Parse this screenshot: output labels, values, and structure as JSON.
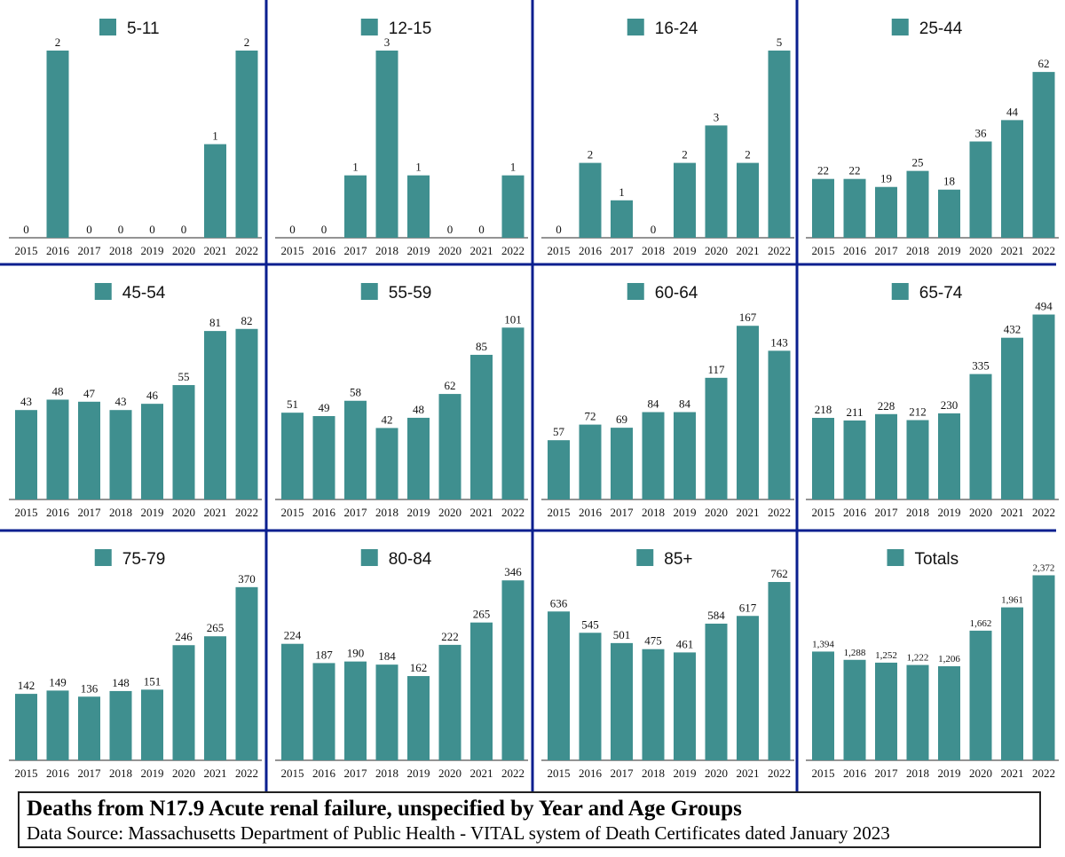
{
  "colors": {
    "bar": "#3f8f8f",
    "divider": "#0a1f8f",
    "axis": "#555555"
  },
  "caption": {
    "title": "Deaths from N17.9 Acute renal failure, unspecified by Year and Age Groups",
    "source": "Data Source:  Massachusetts Department of Public Health - VITAL system of Death Certificates dated January 2023"
  },
  "chart_data": [
    {
      "type": "bar",
      "title": "5-11",
      "categories": [
        "2015",
        "2016",
        "2017",
        "2018",
        "2019",
        "2020",
        "2021",
        "2022"
      ],
      "values": [
        0,
        2,
        0,
        0,
        0,
        0,
        1,
        2
      ],
      "labels": [
        "0",
        "2",
        "0",
        "0",
        "0",
        "0",
        "1",
        "2"
      ],
      "ylim": [
        0,
        2
      ]
    },
    {
      "type": "bar",
      "title": "12-15",
      "categories": [
        "2015",
        "2016",
        "2017",
        "2018",
        "2019",
        "2020",
        "2021",
        "2022"
      ],
      "values": [
        0,
        0,
        1,
        3,
        1,
        0,
        0,
        1
      ],
      "labels": [
        "0",
        "0",
        "1",
        "3",
        "1",
        "0",
        "0",
        "1"
      ],
      "ylim": [
        0,
        3
      ]
    },
    {
      "type": "bar",
      "title": "16-24",
      "categories": [
        "2015",
        "2016",
        "2017",
        "2018",
        "2019",
        "2020",
        "2021",
        "2022"
      ],
      "values": [
        0,
        2,
        1,
        0,
        2,
        3,
        2,
        5
      ],
      "labels": [
        "0",
        "2",
        "1",
        "0",
        "2",
        "3",
        "2",
        "5"
      ],
      "ylim": [
        0,
        5
      ]
    },
    {
      "type": "bar",
      "title": "25-44",
      "categories": [
        "2015",
        "2016",
        "2017",
        "2018",
        "2019",
        "2020",
        "2021",
        "2022"
      ],
      "values": [
        22,
        22,
        19,
        25,
        18,
        36,
        44,
        62
      ],
      "labels": [
        "22",
        "22",
        "19",
        "25",
        "18",
        "36",
        "44",
        "62"
      ],
      "ylim": [
        0,
        70
      ]
    },
    {
      "type": "bar",
      "title": "45-54",
      "categories": [
        "2015",
        "2016",
        "2017",
        "2018",
        "2019",
        "2020",
        "2021",
        "2022"
      ],
      "values": [
        43,
        48,
        47,
        43,
        46,
        55,
        81,
        82
      ],
      "labels": [
        "43",
        "48",
        "47",
        "43",
        "46",
        "55",
        "81",
        "82"
      ],
      "ylim": [
        0,
        90
      ]
    },
    {
      "type": "bar",
      "title": "55-59",
      "categories": [
        "2015",
        "2016",
        "2017",
        "2018",
        "2019",
        "2020",
        "2021",
        "2022"
      ],
      "values": [
        51,
        49,
        58,
        42,
        48,
        62,
        85,
        101
      ],
      "labels": [
        "51",
        "49",
        "58",
        "42",
        "48",
        "62",
        "85",
        "101"
      ],
      "ylim": [
        0,
        110
      ]
    },
    {
      "type": "bar",
      "title": "60-64",
      "categories": [
        "2015",
        "2016",
        "2017",
        "2018",
        "2019",
        "2020",
        "2021",
        "2022"
      ],
      "values": [
        57,
        72,
        69,
        84,
        84,
        117,
        167,
        143
      ],
      "labels": [
        "57",
        "72",
        "69",
        "84",
        "84",
        "117",
        "167",
        "143"
      ],
      "ylim": [
        0,
        180
      ]
    },
    {
      "type": "bar",
      "title": "65-74",
      "categories": [
        "2015",
        "2016",
        "2017",
        "2018",
        "2019",
        "2020",
        "2021",
        "2022"
      ],
      "values": [
        218,
        211,
        228,
        212,
        230,
        335,
        432,
        494
      ],
      "labels": [
        "218",
        "211",
        "228",
        "212",
        "230",
        "335",
        "432",
        "494"
      ],
      "ylim": [
        0,
        500
      ]
    },
    {
      "type": "bar",
      "title": "75-79",
      "categories": [
        "2015",
        "2016",
        "2017",
        "2018",
        "2019",
        "2020",
        "2021",
        "2022"
      ],
      "values": [
        142,
        149,
        136,
        148,
        151,
        246,
        265,
        370
      ],
      "labels": [
        "142",
        "149",
        "136",
        "148",
        "151",
        "246",
        "265",
        "370"
      ],
      "ylim": [
        0,
        400
      ]
    },
    {
      "type": "bar",
      "title": "80-84",
      "categories": [
        "2015",
        "2016",
        "2017",
        "2018",
        "2019",
        "2020",
        "2021",
        "2022"
      ],
      "values": [
        224,
        187,
        190,
        184,
        162,
        222,
        265,
        346
      ],
      "labels": [
        "224",
        "187",
        "190",
        "184",
        "162",
        "222",
        "265",
        "346"
      ],
      "ylim": [
        0,
        360
      ]
    },
    {
      "type": "bar",
      "title": "85+",
      "categories": [
        "2015",
        "2016",
        "2017",
        "2018",
        "2019",
        "2020",
        "2021",
        "2022"
      ],
      "values": [
        636,
        545,
        501,
        475,
        461,
        584,
        617,
        762
      ],
      "labels": [
        "636",
        "545",
        "501",
        "475",
        "461",
        "584",
        "617",
        "762"
      ],
      "ylim": [
        0,
        800
      ]
    },
    {
      "type": "bar",
      "title": "Totals",
      "categories": [
        "2015",
        "2016",
        "2017",
        "2018",
        "2019",
        "2020",
        "2021",
        "2022"
      ],
      "values": [
        1394,
        1288,
        1252,
        1222,
        1206,
        1662,
        1961,
        2372
      ],
      "labels": [
        "1,394",
        "1,288",
        "1,252",
        "1,222",
        "1,206",
        "1,662",
        "1,961",
        "2,372"
      ],
      "ylim": [
        0,
        2400
      ]
    }
  ]
}
